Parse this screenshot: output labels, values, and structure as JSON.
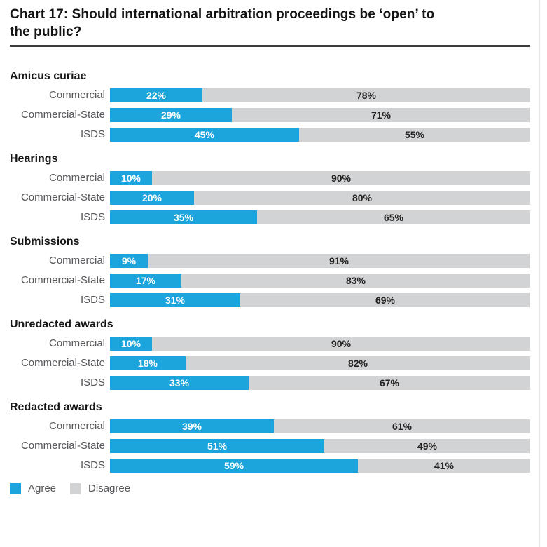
{
  "title": "Chart 17: Should international arbitration proceedings be ‘open’ to\nthe public?",
  "colors": {
    "agree": "#1ca4dc",
    "disagree": "#d2d3d4",
    "title_text": "#141414",
    "row_label_text": "#55565a",
    "percent_on_gray": "#232122",
    "percent_on_blue": "#ffffff",
    "title_rule": "#3c3c3c"
  },
  "legend": {
    "items": [
      {
        "label": "Agree",
        "swatch": "agree-swatch",
        "color": "#1ca4dc"
      },
      {
        "label": "Disagree",
        "swatch": "disagree-swatch",
        "color": "#d2d3d4"
      }
    ]
  },
  "chart_data": {
    "type": "bar",
    "orientation": "horizontal",
    "stacked": true,
    "value_unit": "%",
    "xlim": [
      0,
      100
    ],
    "grid": false,
    "legend_position": "bottom-left",
    "series_names": [
      "Agree",
      "Disagree"
    ],
    "title": "Chart 17: Should international arbitration proceedings be ‘open’ to the public?",
    "groups": [
      {
        "label": "Amicus curiae",
        "rows": [
          {
            "label": "Commercial",
            "agree": 22,
            "disagree": 78
          },
          {
            "label": "Commercial-State",
            "agree": 29,
            "disagree": 71
          },
          {
            "label": "ISDS",
            "agree": 45,
            "disagree": 55
          }
        ]
      },
      {
        "label": "Hearings",
        "rows": [
          {
            "label": "Commercial",
            "agree": 10,
            "disagree": 90
          },
          {
            "label": "Commercial-State",
            "agree": 20,
            "disagree": 80
          },
          {
            "label": "ISDS",
            "agree": 35,
            "disagree": 65
          }
        ]
      },
      {
        "label": "Submissions",
        "rows": [
          {
            "label": "Commercial",
            "agree": 9,
            "disagree": 91
          },
          {
            "label": "Commercial-State",
            "agree": 17,
            "disagree": 83
          },
          {
            "label": "ISDS",
            "agree": 31,
            "disagree": 69
          }
        ]
      },
      {
        "label": "Unredacted awards",
        "rows": [
          {
            "label": "Commercial",
            "agree": 10,
            "disagree": 90
          },
          {
            "label": "Commercial-State",
            "agree": 18,
            "disagree": 82
          },
          {
            "label": "ISDS",
            "agree": 33,
            "disagree": 67
          }
        ]
      },
      {
        "label": "Redacted awards",
        "rows": [
          {
            "label": "Commercial",
            "agree": 39,
            "disagree": 61
          },
          {
            "label": "Commercial-State",
            "agree": 51,
            "disagree": 49
          },
          {
            "label": "ISDS",
            "agree": 59,
            "disagree": 41
          }
        ]
      }
    ]
  }
}
